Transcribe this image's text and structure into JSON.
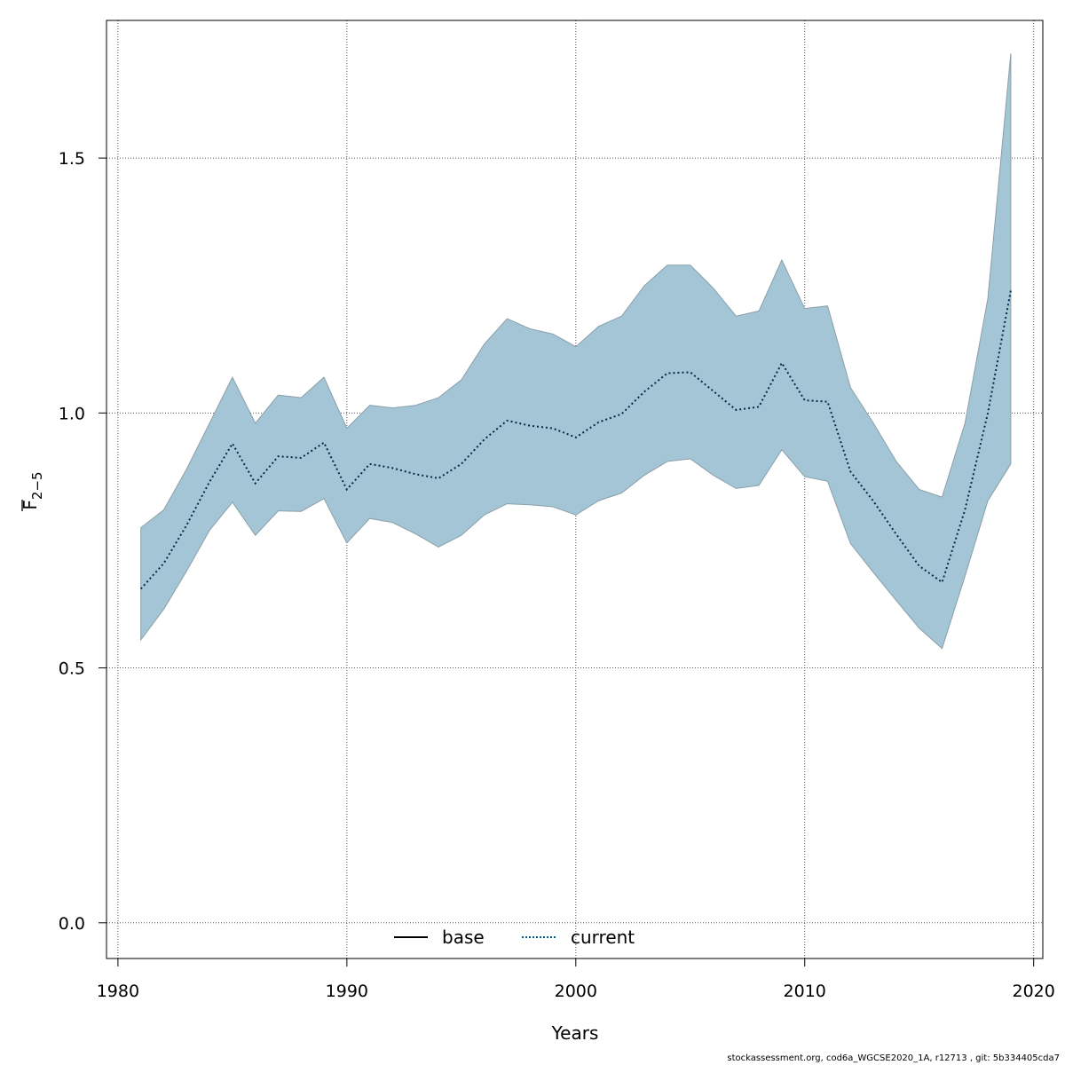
{
  "chart_data": {
    "type": "area",
    "xlabel": "Years",
    "ylabel_main": "F",
    "ylabel_sub": "2−5",
    "xlim": [
      1979.5,
      2020.4
    ],
    "ylim": [
      -0.07,
      1.77
    ],
    "xticks": [
      1980,
      1990,
      2000,
      2010,
      2020
    ],
    "yticks": [
      0.0,
      0.5,
      1.0,
      1.5
    ],
    "ytick_labels": [
      "0.0",
      "0.5",
      "1.0",
      "1.5"
    ],
    "grid": true,
    "legend_position": "bottom-center",
    "x": [
      1981,
      1982,
      1983,
      1984,
      1985,
      1986,
      1987,
      1988,
      1989,
      1990,
      1991,
      1992,
      1993,
      1994,
      1995,
      1996,
      1997,
      1998,
      1999,
      2000,
      2001,
      2002,
      2003,
      2004,
      2005,
      2006,
      2007,
      2008,
      2009,
      2010,
      2011,
      2012,
      2013,
      2014,
      2015,
      2016,
      2017,
      2018,
      2019
    ],
    "band": {
      "color": "#a4c5d6",
      "upper": [
        0.775,
        0.81,
        0.89,
        0.98,
        1.07,
        0.98,
        1.035,
        1.03,
        1.07,
        0.97,
        1.015,
        1.01,
        1.015,
        1.03,
        1.065,
        1.135,
        1.185,
        1.165,
        1.155,
        1.13,
        1.17,
        1.19,
        1.25,
        1.29,
        1.29,
        1.245,
        1.19,
        1.2,
        1.3,
        1.205,
        1.21,
        1.05,
        0.98,
        0.905,
        0.85,
        0.835,
        0.98,
        1.225,
        1.705
      ],
      "lower": [
        0.555,
        0.615,
        0.69,
        0.77,
        0.825,
        0.76,
        0.808,
        0.807,
        0.832,
        0.745,
        0.793,
        0.785,
        0.763,
        0.737,
        0.76,
        0.8,
        0.822,
        0.82,
        0.816,
        0.8,
        0.828,
        0.843,
        0.878,
        0.905,
        0.91,
        0.878,
        0.852,
        0.858,
        0.928,
        0.875,
        0.866,
        0.744,
        0.687,
        0.632,
        0.578,
        0.538,
        0.68,
        0.828,
        0.9
      ]
    },
    "series": [
      {
        "name": "current",
        "style": "dotted",
        "color": "#005a8c",
        "values": [
          0.655,
          0.705,
          0.78,
          0.865,
          0.94,
          0.862,
          0.915,
          0.912,
          0.942,
          0.85,
          0.9,
          0.892,
          0.88,
          0.872,
          0.9,
          0.948,
          0.985,
          0.975,
          0.97,
          0.952,
          0.982,
          0.998,
          1.042,
          1.078,
          1.08,
          1.043,
          1.006,
          1.012,
          1.098,
          1.025,
          1.022,
          0.885,
          0.827,
          0.762,
          0.7,
          0.668,
          0.81,
          1.0,
          1.24
        ]
      }
    ],
    "legend": [
      {
        "label": "base",
        "style": "solid",
        "color": "#000000"
      },
      {
        "label": "current",
        "style": "dotted",
        "color": "#005a8c"
      }
    ]
  },
  "footer": {
    "text": "stockassessment.org, cod6a_WGCSE2020_1A, r12713 , git: 5b334405cda7"
  }
}
